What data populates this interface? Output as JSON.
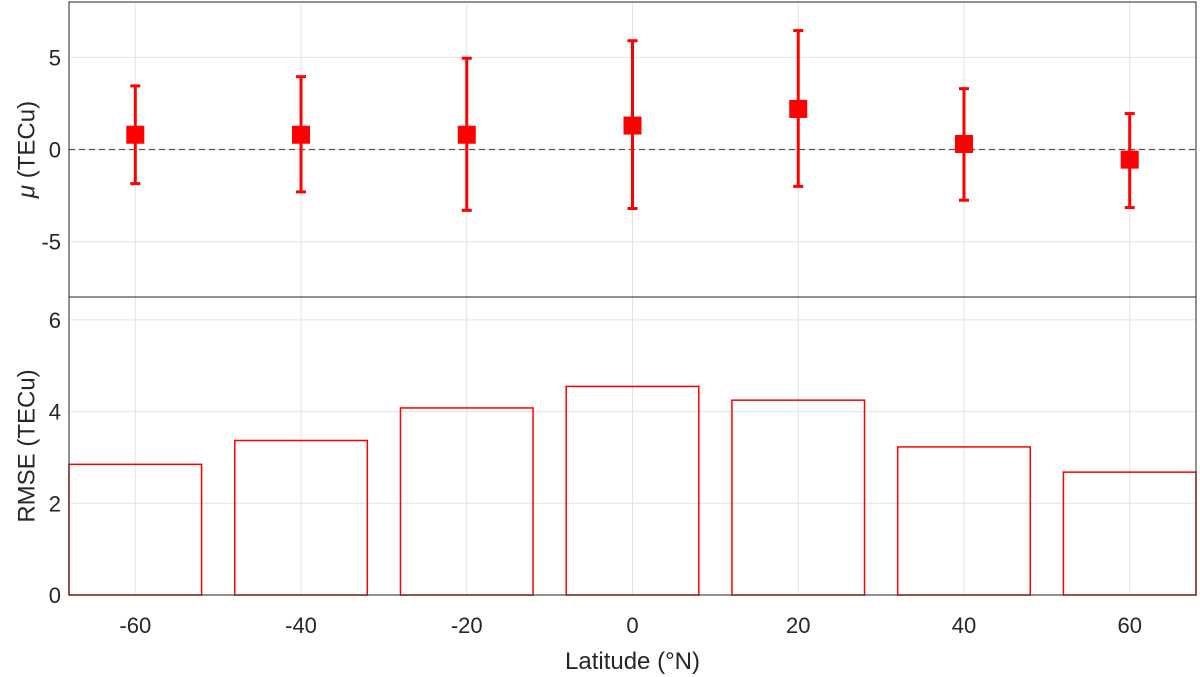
{
  "colors": {
    "series": "#ff0000",
    "axis": "#262626",
    "grid": "#e3e3e3"
  },
  "chart_data": [
    {
      "type": "scatter",
      "panel": "top",
      "xlabel": "",
      "ylabel_symbol": "μ",
      "ylabel": " (TECu)",
      "x": [
        -60,
        -40,
        -20,
        0,
        20,
        40,
        60
      ],
      "series": [
        {
          "y": [
            0.8,
            0.8,
            0.8,
            1.3,
            2.2,
            0.3,
            -0.55
          ],
          "error_low": [
            -1.85,
            -2.3,
            -3.3,
            -3.2,
            -2.0,
            -2.75,
            -3.15
          ],
          "error_high": [
            3.45,
            3.95,
            4.95,
            5.9,
            6.45,
            3.3,
            1.95
          ]
        }
      ],
      "reference_line": 0,
      "xlim": [
        -68,
        68
      ],
      "ylim": [
        -8,
        8
      ],
      "yticks": [
        -5,
        0,
        5
      ],
      "xticks": [
        -60,
        -40,
        -20,
        0,
        20,
        40,
        60
      ],
      "grid": true
    },
    {
      "type": "bar",
      "panel": "bottom",
      "xlabel": "Latitude (°N)",
      "ylabel": "RMSE (TECu)",
      "categories": [
        -60,
        -40,
        -20,
        0,
        20,
        40,
        60
      ],
      "values": [
        2.85,
        3.37,
        4.08,
        4.55,
        4.25,
        3.23,
        2.68
      ],
      "xlim": [
        -68,
        68
      ],
      "ylim": [
        0,
        6.5
      ],
      "yticks": [
        0,
        2,
        4,
        6
      ],
      "xticks": [
        -60,
        -40,
        -20,
        0,
        20,
        40,
        60
      ],
      "grid": true
    }
  ]
}
